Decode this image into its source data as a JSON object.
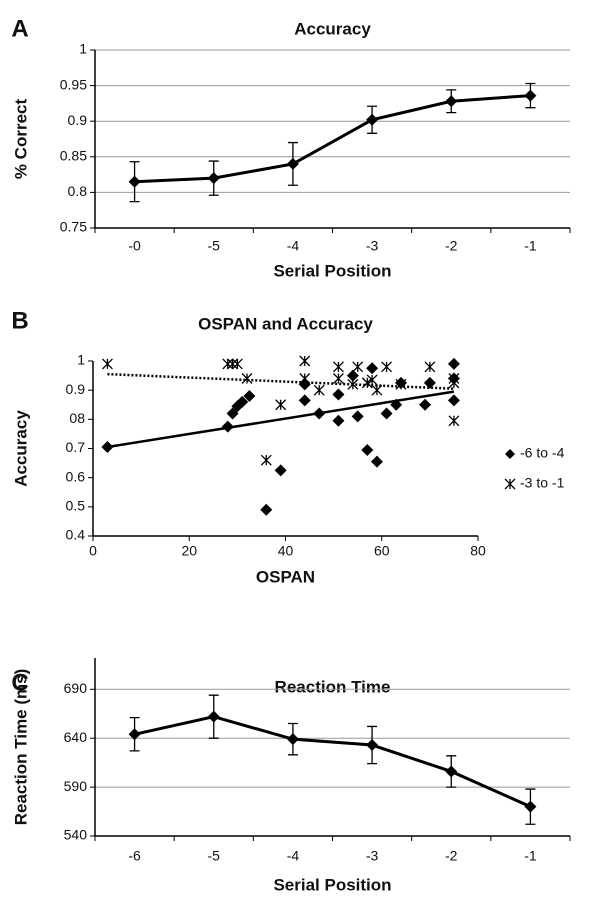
{
  "chart_data": [
    {
      "type": "line",
      "label": "A",
      "title": "Accuracy",
      "x_label": "Serial  Position",
      "y_label": "% Correct",
      "categories": [
        "-0",
        "-5",
        "-4",
        "-3",
        "-2",
        "-1"
      ],
      "values": [
        0.815,
        0.82,
        0.84,
        0.902,
        0.928,
        0.936
      ],
      "errors": [
        0.028,
        0.024,
        0.03,
        0.019,
        0.016,
        0.017
      ],
      "color": "#000000",
      "ylim": [
        0.75,
        1
      ],
      "yticks": [
        0.75,
        0.8,
        0.85,
        0.9,
        0.95,
        1
      ],
      "grid": true
    },
    {
      "type": "scatter",
      "label": "B",
      "title": "OSPAN  and Accuracy",
      "x_label": "OSPAN",
      "y_label": "Accuracy",
      "xlim": [
        0,
        80
      ],
      "xticks": [
        0,
        20,
        40,
        60,
        80
      ],
      "ylim": [
        0.4,
        1
      ],
      "yticks": [
        0.4,
        0.5,
        0.6,
        0.7,
        {
          "value": 0.8,
          "label": "08"
        },
        0.9,
        1
      ],
      "grid": false,
      "legend": "right",
      "series": [
        {
          "name": "-6 to -4",
          "color": "#000000",
          "marker": "diamond",
          "x": [
            3,
            28,
            29,
            30,
            31,
            32.5,
            36,
            39,
            44,
            44,
            47,
            51,
            51,
            54,
            55,
            57,
            58,
            59,
            61,
            63,
            64,
            69,
            70,
            75,
            75,
            75
          ],
          "values": [
            0.705,
            0.775,
            0.82,
            0.845,
            0.86,
            0.88,
            0.49,
            0.625,
            0.92,
            0.865,
            0.82,
            0.885,
            0.795,
            0.95,
            0.81,
            0.695,
            0.975,
            0.655,
            0.82,
            0.85,
            0.925,
            0.85,
            0.925,
            0.99,
            0.94,
            0.865
          ],
          "trend": {
            "x": [
              3,
              75
            ],
            "values": [
              0.705,
              0.895
            ],
            "style": "solid"
          }
        },
        {
          "name": "-3 to -1",
          "color": "#000000",
          "marker": "asterisk",
          "x": [
            3,
            28,
            29,
            30,
            32,
            36,
            39,
            44,
            44,
            47,
            51,
            51,
            54,
            55,
            57,
            58,
            59,
            61,
            64,
            70,
            75,
            75,
            75
          ],
          "values": [
            0.99,
            0.99,
            0.99,
            0.99,
            0.94,
            0.66,
            0.85,
            1.0,
            0.94,
            0.9,
            0.98,
            0.94,
            0.92,
            0.98,
            0.925,
            0.935,
            0.9,
            0.98,
            0.92,
            0.98,
            0.94,
            0.925,
            0.795
          ],
          "trend": {
            "x": [
              3,
              75
            ],
            "values": [
              0.955,
              0.905
            ],
            "style": "dotted"
          }
        }
      ]
    },
    {
      "type": "line",
      "label": "C",
      "title": "Reaction Time",
      "x_label": "Serial Position",
      "y_label": "Reaction Time (ms)",
      "categories": [
        "-6",
        "-5",
        "-4",
        "-3",
        "-2",
        "-1"
      ],
      "values": [
        644,
        662,
        639,
        633,
        606,
        570
      ],
      "errors": [
        17,
        22,
        16,
        19,
        16,
        18
      ],
      "color": "#000000",
      "ylim": [
        540,
        722
      ],
      "yticks": [
        540,
        590,
        640,
        690
      ],
      "grid": true
    }
  ]
}
